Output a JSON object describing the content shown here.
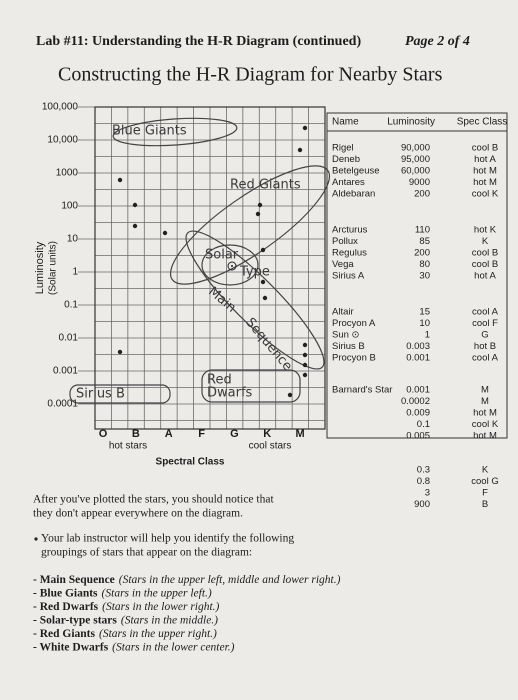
{
  "header": {
    "lab": "Lab #11: Understanding the H-R Diagram (continued)",
    "page": "Page 2 of 4",
    "title": "Constructing the H-R Diagram for Nearby Stars"
  },
  "diagram": {
    "y_title": "Luminosity",
    "y_units": "(Solar units)",
    "y_labels": [
      "100,000",
      "10,000",
      "1000",
      "100",
      "10",
      "1",
      "0.1",
      "0.01",
      "0.001",
      "0.0001"
    ],
    "spectral_letters": [
      "O",
      "B",
      "A",
      "F",
      "G",
      "K",
      "M"
    ],
    "hot_label": "hot stars",
    "cool_label": "cool stars",
    "x_title": "Spectral Class",
    "annotations": {
      "blue_giants": "Blue Giants",
      "red_giants": "Red Giants",
      "solar": "Solar",
      "type": "Type",
      "main": "Main",
      "sequence": "Sequence",
      "sirius_b": "Sirius B",
      "red": "Red",
      "dwarfs": "Dwarfs"
    }
  },
  "table": {
    "headers": [
      "Name",
      "Luminosity",
      "Spec Class"
    ],
    "groups": [
      [
        {
          "name": "Rigel",
          "luminosity": "90,000",
          "spec": "cool B"
        },
        {
          "name": "Deneb",
          "luminosity": "95,000",
          "spec": "hot A"
        },
        {
          "name": "Betelgeuse",
          "luminosity": "60,000",
          "spec": "hot M"
        },
        {
          "name": "Antares",
          "luminosity": "9000",
          "spec": "hot M"
        },
        {
          "name": "Aldebaran",
          "luminosity": "200",
          "spec": "cool K"
        }
      ],
      [
        {
          "name": "Arcturus",
          "luminosity": "110",
          "spec": "hot K"
        },
        {
          "name": "Pollux",
          "luminosity": "85",
          "spec": "K"
        },
        {
          "name": "Regulus",
          "luminosity": "200",
          "spec": "cool B"
        },
        {
          "name": "Vega",
          "luminosity": "80",
          "spec": "cool B"
        },
        {
          "name": "Sirius A",
          "luminosity": "30",
          "spec": "hot A"
        }
      ],
      [
        {
          "name": "Altair",
          "luminosity": "15",
          "spec": "cool A"
        },
        {
          "name": "Procyon A",
          "luminosity": "10",
          "spec": "cool F"
        },
        {
          "name": "Sun ⊙",
          "luminosity": "1",
          "spec": "G"
        },
        {
          "name": "Sirius B",
          "luminosity": "0.003",
          "spec": "hot B"
        },
        {
          "name": "Procyon B",
          "luminosity": "0.001",
          "spec": "cool A"
        }
      ],
      [
        {
          "name": "Barnard's Star",
          "luminosity": "0.001",
          "spec": "M"
        },
        {
          "luminosity": "0.0002",
          "spec": "M"
        },
        {
          "luminosity": "0.009",
          "spec": "hot M"
        },
        {
          "luminosity": "0.1",
          "spec": "cool K"
        },
        {
          "luminosity": "0.005",
          "spec": "hot M"
        }
      ],
      [
        {
          "luminosity": "0.3",
          "spec": "K"
        },
        {
          "luminosity": "0.8",
          "spec": "cool G"
        },
        {
          "luminosity": "3",
          "spec": "F"
        },
        {
          "luminosity": "900",
          "spec": "B"
        }
      ]
    ]
  },
  "body": {
    "paragraph": [
      "After you've plotted the stars, you should notice that",
      "they don't appear everywhere on the diagram."
    ],
    "bullet": [
      "Your lab instructor will help you identify the following",
      "groupings of stars that appear on the diagram:"
    ],
    "groups": [
      {
        "term": "- Main Sequence",
        "desc": "(Stars in the upper left, middle and lower right.)"
      },
      {
        "term": "- Blue Giants",
        "desc": "(Stars in the upper left.)"
      },
      {
        "term": "- Red Dwarfs",
        "desc": "(Stars in the lower right.)"
      },
      {
        "term": "- Solar-type stars",
        "desc": "(Stars in the middle.)"
      },
      {
        "term": "- Red Giants",
        "desc": "(Stars in the upper right.)"
      },
      {
        "term": "- White Dwarfs",
        "desc": "(Stars in the lower center.)"
      }
    ]
  }
}
